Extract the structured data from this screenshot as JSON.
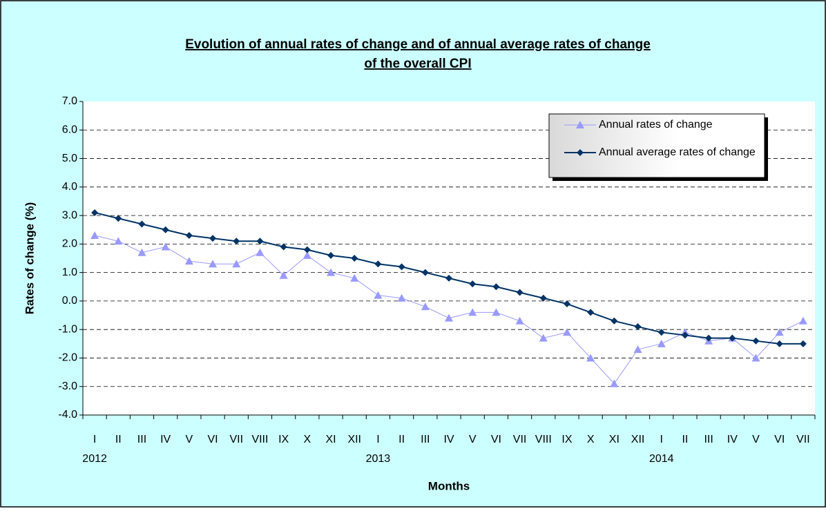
{
  "chart_data": {
    "type": "line",
    "title": [
      "Evolution of annual rates of change and of annual average rates of change",
      "of  the overall CPI"
    ],
    "x_label": "Months",
    "y_label": "Rates of change (%)",
    "categories": [
      "I",
      "II",
      "III",
      "IV",
      "V",
      "VI",
      "VII",
      "VIII",
      "IX",
      "X",
      "XI",
      "XII",
      "I",
      "II",
      "III",
      "IV",
      "V",
      "VI",
      "VII",
      "VIII",
      "IX",
      "X",
      "XI",
      "XII",
      "I",
      "II",
      "III",
      "IV",
      "V",
      "VI",
      "VII"
    ],
    "years": [
      "2012",
      null,
      null,
      null,
      null,
      null,
      null,
      null,
      null,
      null,
      null,
      null,
      "2013",
      null,
      null,
      null,
      null,
      null,
      null,
      null,
      null,
      null,
      null,
      null,
      "2014",
      null,
      null,
      null,
      null,
      null,
      null
    ],
    "series": [
      {
        "name": "Annual rates of change",
        "color": "#9999ff",
        "marker": "triangle",
        "values": [
          2.3,
          2.1,
          1.7,
          1.9,
          1.4,
          1.3,
          1.3,
          1.7,
          0.9,
          1.6,
          1.0,
          0.8,
          0.2,
          0.1,
          -0.2,
          -0.6,
          -0.4,
          -0.4,
          -0.7,
          -1.3,
          -1.1,
          -2.0,
          -2.9,
          -1.7,
          -1.5,
          -1.1,
          -1.4,
          -1.3,
          -2.0,
          -1.1,
          -0.7
        ]
      },
      {
        "name": "Annual average rates of change",
        "color": "#003366",
        "marker": "diamond",
        "values": [
          3.1,
          2.9,
          2.7,
          2.5,
          2.3,
          2.2,
          2.1,
          2.1,
          1.9,
          1.8,
          1.6,
          1.5,
          1.3,
          1.2,
          1.0,
          0.8,
          0.6,
          0.5,
          0.3,
          0.1,
          -0.1,
          -0.4,
          -0.7,
          -0.9,
          -1.1,
          -1.2,
          -1.3,
          -1.3,
          -1.4,
          -1.5,
          -1.5
        ]
      }
    ],
    "ylim": [
      -4,
      7
    ],
    "yticks": [
      {
        "value": -4,
        "label": "-4.0"
      },
      {
        "value": -3,
        "label": "-3.0"
      },
      {
        "value": -2,
        "label": "-2.0"
      },
      {
        "value": -1,
        "label": "-1.0"
      },
      {
        "value": 0,
        "label": "0.0"
      },
      {
        "value": 1,
        "label": "1.0"
      },
      {
        "value": 2,
        "label": "2.0"
      },
      {
        "value": 3,
        "label": "3.0"
      },
      {
        "value": 4,
        "label": "4.0"
      },
      {
        "value": 5,
        "label": "5.0"
      },
      {
        "value": 6,
        "label": "6.0"
      },
      {
        "value": 7,
        "label": "7.0"
      }
    ],
    "grid": true,
    "legend_position": "top-right"
  }
}
